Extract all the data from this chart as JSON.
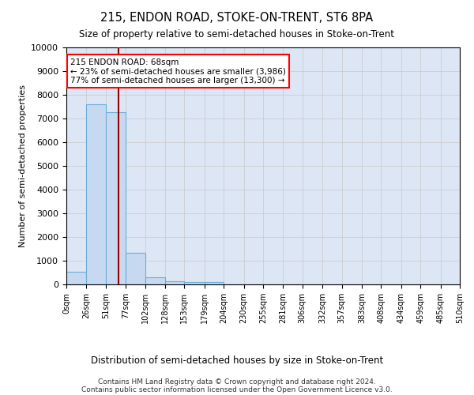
{
  "title": "215, ENDON ROAD, STOKE-ON-TRENT, ST6 8PA",
  "subtitle": "Size of property relative to semi-detached houses in Stoke-on-Trent",
  "xlabel": "Distribution of semi-detached houses by size in Stoke-on-Trent",
  "ylabel": "Number of semi-detached properties",
  "footnote1": "Contains HM Land Registry data © Crown copyright and database right 2024.",
  "footnote2": "Contains public sector information licensed under the Open Government Licence v3.0.",
  "bin_edges": [
    0,
    26,
    51,
    77,
    102,
    128,
    153,
    179,
    204,
    230,
    255,
    281,
    306,
    332,
    357,
    383,
    408,
    434,
    459,
    485,
    510
  ],
  "bar_heights": [
    550,
    7600,
    7250,
    1350,
    300,
    150,
    100,
    100,
    0,
    0,
    0,
    0,
    0,
    0,
    0,
    0,
    0,
    0,
    0,
    0
  ],
  "bar_color": "#c6d9f1",
  "bar_edge_color": "#6baed6",
  "property_size": 68,
  "red_line_color": "#990000",
  "annotation_line1": "215 ENDON ROAD: 68sqm",
  "annotation_line2": "← 23% of semi-detached houses are smaller (3,986)",
  "annotation_line3": "77% of semi-detached houses are larger (13,300) →",
  "ylim": [
    0,
    10000
  ],
  "yticks": [
    0,
    1000,
    2000,
    3000,
    4000,
    5000,
    6000,
    7000,
    8000,
    9000,
    10000
  ],
  "background_color": "#ffffff",
  "grid_color": "#c8c8c8",
  "axes_bg_color": "#dce6f5"
}
